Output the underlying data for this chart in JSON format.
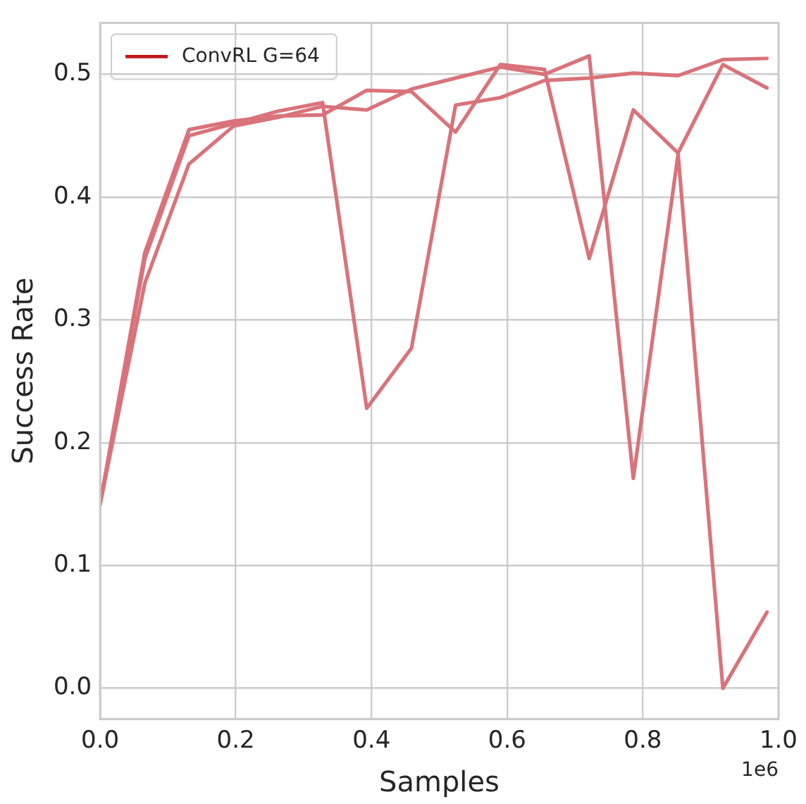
{
  "chart_data": {
    "type": "line",
    "xlabel": "Samples",
    "ylabel": "Success Rate",
    "x": [
      0,
      0.066,
      0.131,
      0.197,
      0.262,
      0.328,
      0.393,
      0.459,
      0.524,
      0.59,
      0.655,
      0.721,
      0.786,
      0.852,
      0.918,
      0.983
    ],
    "series": [
      {
        "name": "ConvRL G=64",
        "color": "#d9737a",
        "values": [
          0.15,
          0.35,
          0.45,
          0.46,
          0.47,
          0.477,
          0.228,
          0.277,
          0.475,
          0.481,
          0.495,
          0.497,
          0.501,
          0.499,
          0.512,
          0.513
        ]
      },
      {
        "color": "#d9737a",
        "values": [
          0.15,
          0.355,
          0.455,
          0.462,
          0.466,
          0.467,
          0.487,
          0.486,
          0.453,
          0.508,
          0.504,
          0.35,
          0.471,
          0.436,
          0.508,
          0.489
        ]
      },
      {
        "color": "#d9737a",
        "values": [
          0.15,
          0.33,
          0.427,
          0.458,
          0.465,
          0.474,
          0.471,
          0.488,
          0.497,
          0.506,
          0.5,
          0.515,
          0.171,
          0.435,
          0.0,
          0.062
        ]
      }
    ],
    "xlim": [
      0,
      1.0
    ],
    "xticks": [
      {
        "value": 0,
        "label": "0.0"
      },
      0.2,
      0.4,
      0.6,
      0.8,
      {
        "value": 1,
        "label": "1.0"
      }
    ],
    "ylim": [
      -0.025,
      0.542
    ],
    "yticks": [
      {
        "value": 0,
        "label": "0.0"
      },
      0.1,
      0.2,
      0.3,
      0.4,
      0.5
    ],
    "annotations": [
      "1e6"
    ],
    "grid": true,
    "legend": "top left",
    "marker": "none",
    "line_style": "solid"
  }
}
